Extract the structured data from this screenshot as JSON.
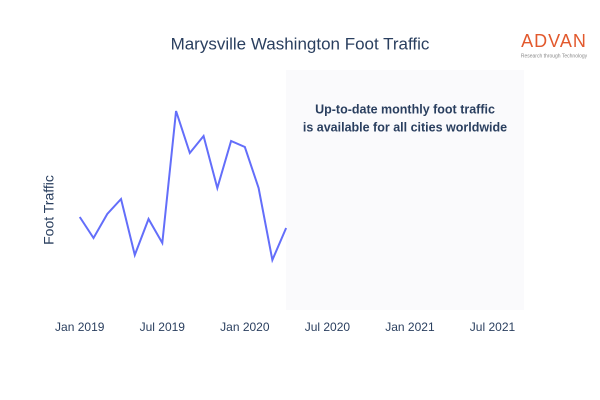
{
  "chart_data": {
    "type": "line",
    "title": "Marysville Washington Foot Traffic",
    "y_label": "Foot Traffic",
    "annotation": [
      "Up-to-date monthly foot traffic",
      "is available for all cities worldwide"
    ],
    "logo": {
      "name": "ADVAN",
      "tagline": "Research through Technology"
    },
    "x": [
      "2019-01",
      "2019-02",
      "2019-03",
      "2019-04",
      "2019-05",
      "2019-06",
      "2019-07",
      "2019-08",
      "2019-09",
      "2019-10",
      "2019-11",
      "2019-12",
      "2020-01",
      "2020-02",
      "2020-03",
      "2020-04"
    ],
    "series": [
      {
        "name": "Foot Traffic",
        "color": "#636efa",
        "values": [
          93,
          72,
          96,
          111,
          55,
          91,
          67,
          199,
          157,
          174,
          122,
          169,
          163,
          122,
          50,
          82
        ]
      }
    ],
    "xlim": [
      "2018-12",
      "2021-09"
    ],
    "xticks": [
      {
        "value": "2019-01",
        "label": "Jan 2019"
      },
      {
        "value": "2019-07",
        "label": "Jul 2019"
      },
      {
        "value": "2020-01",
        "label": "Jan 2020"
      },
      {
        "value": "2020-07",
        "label": "Jul 2020"
      },
      {
        "value": "2021-01",
        "label": "Jan 2021"
      },
      {
        "value": "2021-07",
        "label": "Jul 2021"
      }
    ],
    "ylim": [
      0,
      230
    ]
  }
}
